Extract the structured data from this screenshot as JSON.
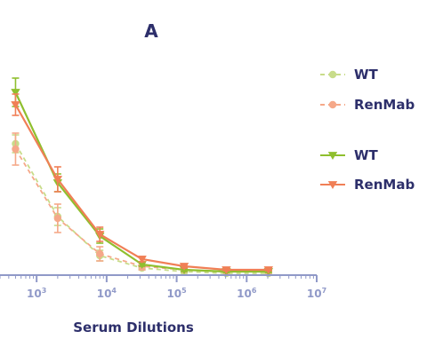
{
  "chart_data": {
    "type": "line",
    "title": "A",
    "xlabel": "Serum Dilutions",
    "ylabel": "",
    "x_scale": "log",
    "xlim": [
      300,
      10000000
    ],
    "ylim": [
      0,
      1
    ],
    "x_ticks": [
      {
        "value": 1000,
        "base": "10",
        "exp": "3"
      },
      {
        "value": 10000,
        "base": "10",
        "exp": "4"
      },
      {
        "value": 100000,
        "base": "10",
        "exp": "5"
      },
      {
        "value": 1000000,
        "base": "10",
        "exp": "6"
      },
      {
        "value": 10000000,
        "base": "10",
        "exp": "7"
      }
    ],
    "grid": false,
    "legend_position": "right",
    "series": [
      {
        "name": "WT",
        "group": "dashed",
        "marker": "circle",
        "line_style": "dashed",
        "color": "#c8dc8a",
        "x": [
          500,
          2000,
          8000,
          32000,
          128000,
          512000,
          2048000
        ],
        "y": [
          0.74,
          0.33,
          0.11,
          0.04,
          0.02,
          0.01,
          0.01
        ],
        "err": [
          0.05,
          0.05,
          0.03,
          0.01,
          0.01,
          0.005,
          0.005
        ]
      },
      {
        "name": "RenMab",
        "group": "dashed",
        "marker": "circle",
        "line_style": "dashed",
        "color": "#f5a889",
        "x": [
          500,
          2000,
          8000,
          32000,
          128000,
          512000,
          2048000
        ],
        "y": [
          0.71,
          0.32,
          0.12,
          0.05,
          0.03,
          0.02,
          0.02
        ],
        "err": [
          0.09,
          0.08,
          0.04,
          0.02,
          0.01,
          0.005,
          0.005
        ]
      },
      {
        "name": "WT",
        "group": "solid",
        "marker": "triangle-down",
        "line_style": "solid",
        "color": "#8fbf2e",
        "x": [
          500,
          2000,
          8000,
          32000,
          128000,
          512000,
          2048000
        ],
        "y": [
          1.03,
          0.52,
          0.22,
          0.06,
          0.03,
          0.02,
          0.02
        ],
        "err": [
          0.08,
          0.05,
          0.04,
          0.01,
          0.01,
          0.005,
          0.005
        ]
      },
      {
        "name": "RenMab",
        "group": "solid",
        "marker": "triangle-down",
        "line_style": "solid",
        "color": "#f07f56",
        "x": [
          500,
          2000,
          8000,
          32000,
          128000,
          512000,
          2048000
        ],
        "y": [
          0.96,
          0.54,
          0.23,
          0.09,
          0.05,
          0.03,
          0.03
        ],
        "err": [
          0.06,
          0.07,
          0.04,
          0.015,
          0.01,
          0.005,
          0.005
        ]
      }
    ]
  },
  "colors": {
    "axis": "#9099c8",
    "text": "#2d2f6b"
  }
}
